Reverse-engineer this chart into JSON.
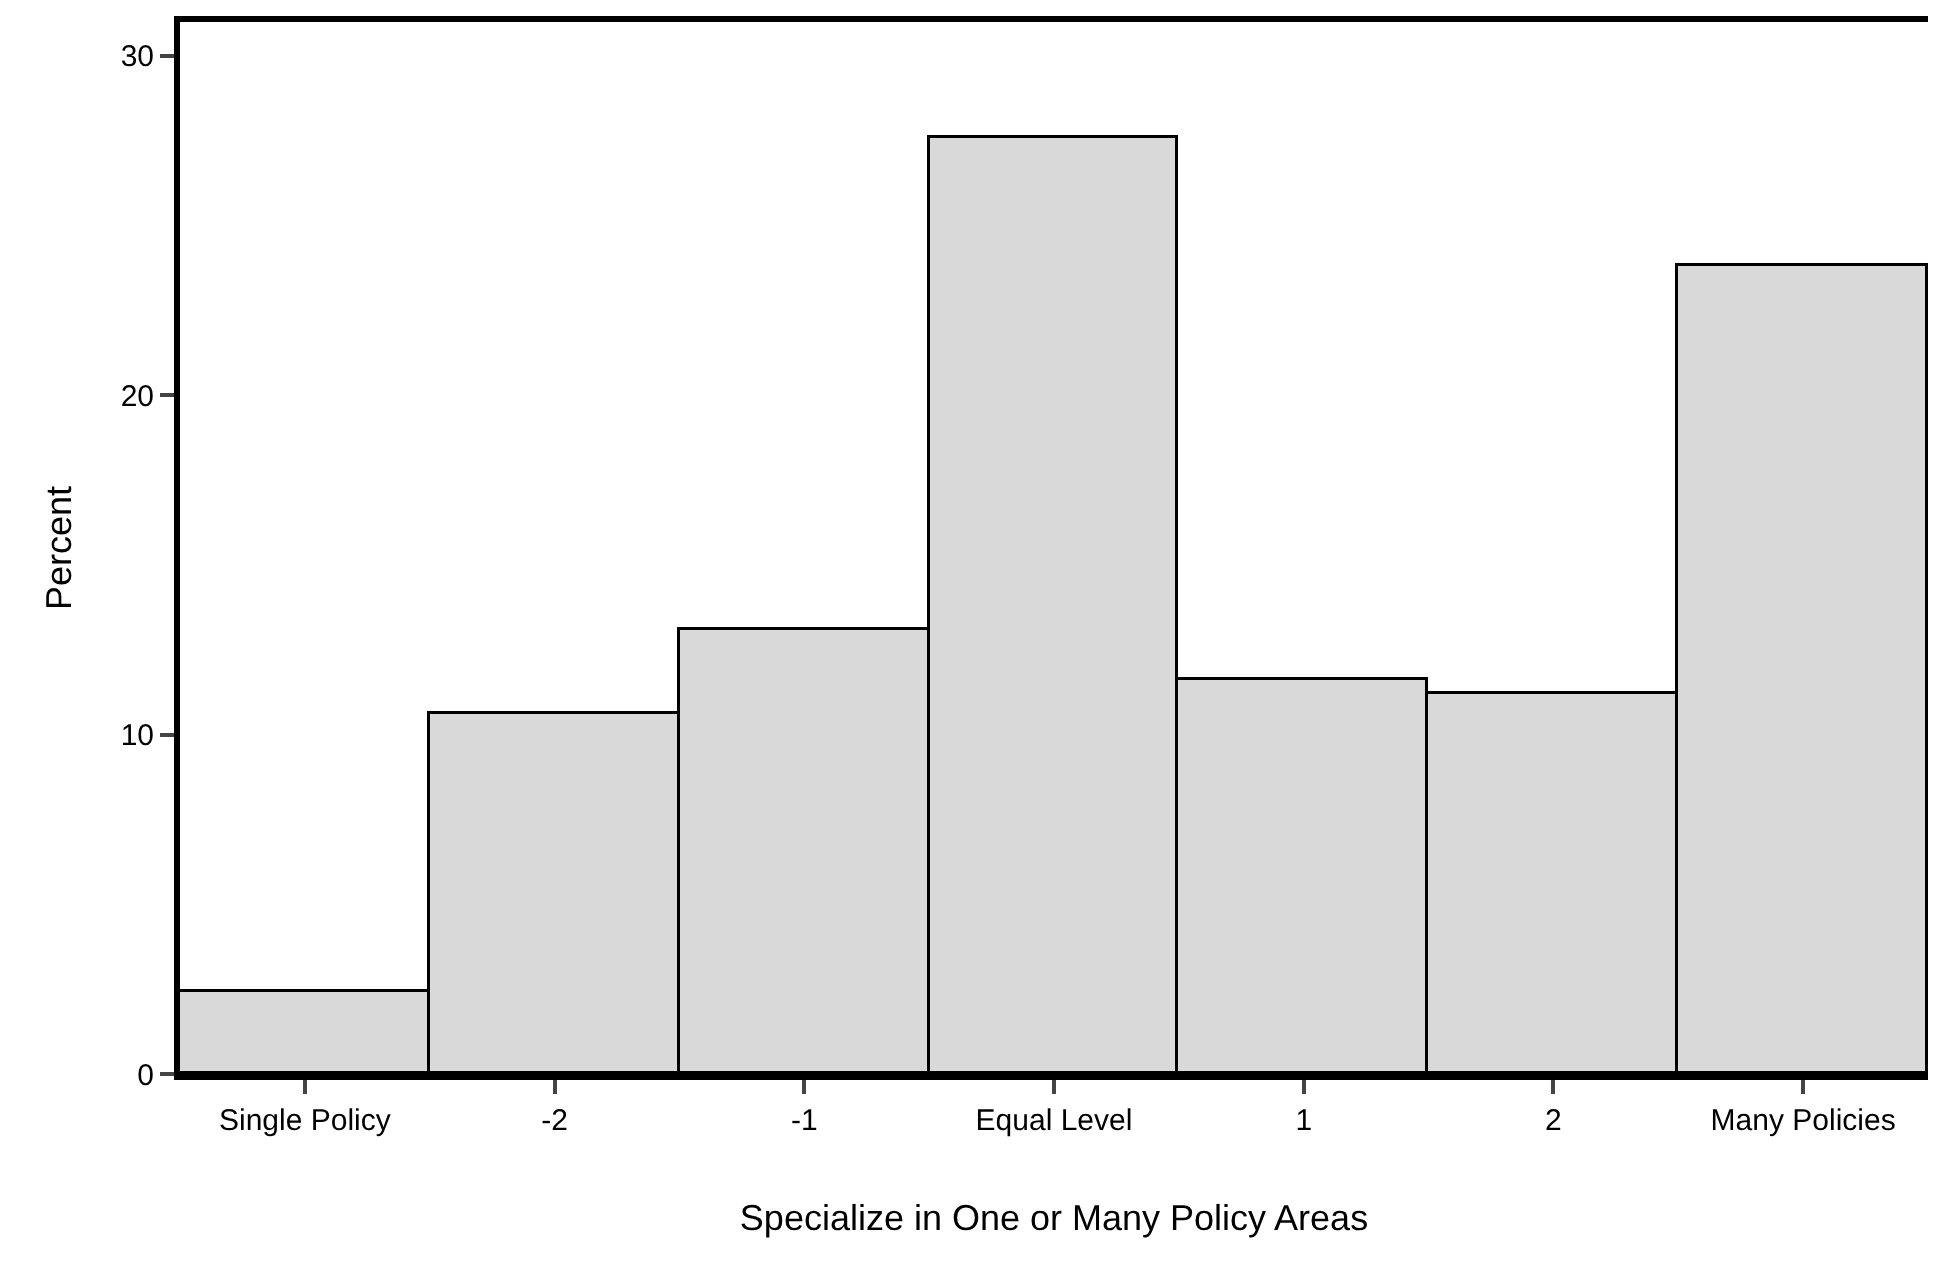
{
  "chart_data": {
    "type": "bar",
    "xlabel": "Specialize in One or Many Policy Areas",
    "ylabel": "Percent",
    "categories": [
      "Single Policy",
      "-2",
      "-1",
      "Equal Level",
      "1",
      "2",
      "Many Policies"
    ],
    "values": [
      2.4,
      10.6,
      13.1,
      27.6,
      11.6,
      11.2,
      23.8
    ],
    "color": "#d9d9d9",
    "ylim": [
      0,
      31
    ],
    "yticks": [
      0,
      10,
      20,
      30
    ]
  }
}
